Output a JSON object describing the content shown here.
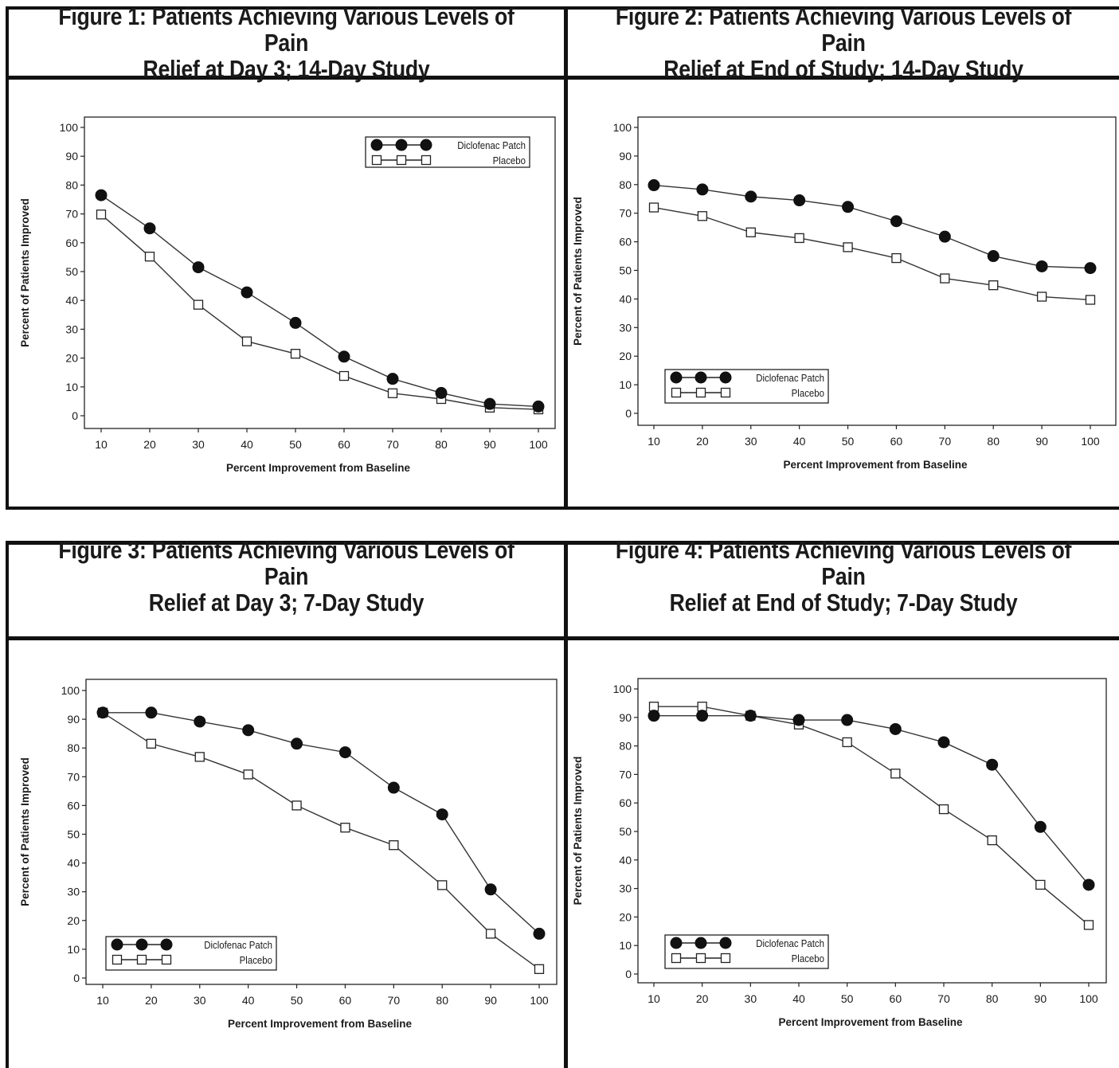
{
  "figures": [
    {
      "title": "Figure 1: Patients Achieving Various Levels of Pain\nRelief at Day 3; 14-Day Study",
      "chart_data": {
        "type": "line",
        "xlabel": "Percent Improvement from Baseline",
        "ylabel": "Percent of Patients Improved",
        "x": [
          10,
          20,
          30,
          40,
          50,
          60,
          70,
          80,
          90,
          100
        ],
        "ylim": [
          0,
          100
        ],
        "yticks": [
          0,
          10,
          20,
          30,
          40,
          50,
          60,
          70,
          80,
          90,
          100
        ],
        "legend_position": "top-right",
        "series": [
          {
            "name": "Diclofenac Patch",
            "marker": "filled-circle",
            "values": [
              76.5,
              65,
              51.5,
              42.8,
              32.2,
              20.5,
              12.8,
              7.9,
              4.1,
              3.2
            ]
          },
          {
            "name": "Placebo",
            "marker": "open-square",
            "values": [
              69.8,
              55.2,
              38.5,
              25.8,
              21.5,
              13.8,
              7.8,
              5.8,
              2.8,
              2.2
            ]
          }
        ]
      }
    },
    {
      "title": "Figure 2: Patients Achieving Various Levels of Pain\nRelief at End of Study; 14-Day Study",
      "chart_data": {
        "type": "line",
        "xlabel": "Percent Improvement from Baseline",
        "ylabel": "Percent of Patients Improved",
        "x": [
          10,
          20,
          30,
          40,
          50,
          60,
          70,
          80,
          90,
          100
        ],
        "ylim": [
          0,
          100
        ],
        "yticks": [
          0,
          10,
          20,
          30,
          40,
          50,
          60,
          70,
          80,
          90,
          100
        ],
        "legend_position": "bottom-left",
        "series": [
          {
            "name": "Diclofenac Patch",
            "marker": "filled-circle",
            "values": [
              79.8,
              78.3,
              75.8,
              74.5,
              72.2,
              67.2,
              61.8,
              55,
              51.4,
              50.8
            ]
          },
          {
            "name": "Placebo",
            "marker": "open-square",
            "values": [
              72,
              69,
              63.3,
              61.3,
              58.1,
              54.3,
              47.2,
              44.8,
              40.8,
              39.7
            ]
          }
        ]
      }
    },
    {
      "title": "Figure 3: Patients Achieving Various Levels of Pain\nRelief at Day 3; 7-Day Study",
      "chart_data": {
        "type": "line",
        "xlabel": "Percent Improvement from Baseline",
        "ylabel": "Percent of Patients Improved",
        "x": [
          10,
          20,
          30,
          40,
          50,
          60,
          70,
          80,
          90,
          100
        ],
        "ylim": [
          0,
          100
        ],
        "yticks": [
          0,
          10,
          20,
          30,
          40,
          50,
          60,
          70,
          80,
          90,
          100
        ],
        "legend_position": "bottom-left",
        "series": [
          {
            "name": "Diclofenac Patch",
            "marker": "filled-circle",
            "values": [
              92.3,
              92.3,
              89.2,
              86.2,
              81.5,
              78.5,
              66.2,
              56.9,
              30.8,
              15.4
            ]
          },
          {
            "name": "Placebo",
            "marker": "open-square",
            "values": [
              92.3,
              81.5,
              76.9,
              70.8,
              60,
              52.3,
              46.2,
              32.3,
              15.4,
              3.1
            ]
          }
        ]
      }
    },
    {
      "title": "Figure 4: Patients Achieving Various Levels of Pain\nRelief at End of Study; 7-Day Study",
      "chart_data": {
        "type": "line",
        "xlabel": "Percent Improvement from Baseline",
        "ylabel": "Percent of Patients Improved",
        "x": [
          10,
          20,
          30,
          40,
          50,
          60,
          70,
          80,
          90,
          100
        ],
        "ylim": [
          0,
          100
        ],
        "yticks": [
          0,
          10,
          20,
          30,
          40,
          50,
          60,
          70,
          80,
          90,
          100
        ],
        "legend_position": "bottom-left",
        "series": [
          {
            "name": "Diclofenac Patch",
            "marker": "filled-circle",
            "values": [
              90.6,
              90.6,
              90.6,
              89.1,
              89.1,
              85.9,
              81.3,
              73.4,
              51.6,
              31.3
            ]
          },
          {
            "name": "Placebo",
            "marker": "open-square",
            "values": [
              93.8,
              93.8,
              90.6,
              87.5,
              81.3,
              70.3,
              57.8,
              46.9,
              31.3,
              17.2
            ]
          }
        ]
      }
    }
  ]
}
